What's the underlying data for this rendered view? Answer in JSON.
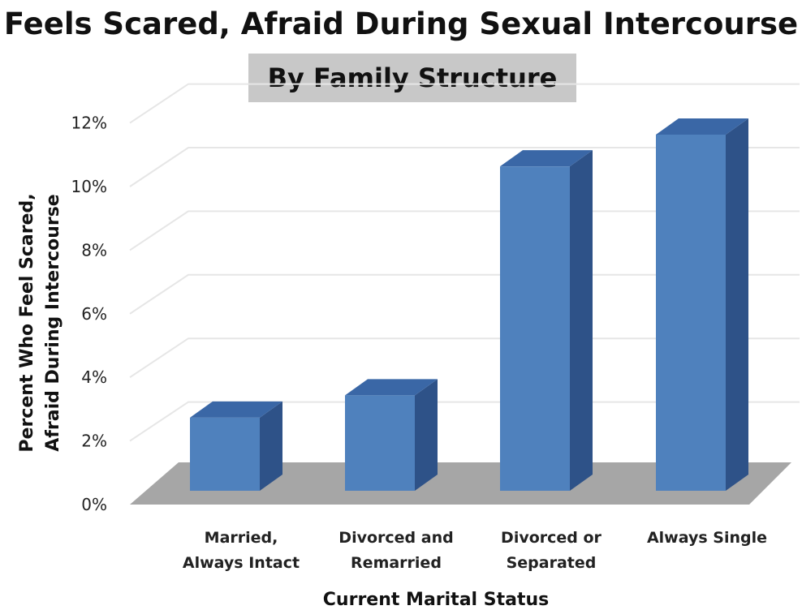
{
  "chart_data": {
    "type": "bar",
    "title": "Feels Scared, Afraid During Sexual Intercourse",
    "subtitle": "By Family Structure",
    "categories": [
      [
        "Married,",
        "Always Intact"
      ],
      [
        "Divorced and",
        "Remarried"
      ],
      [
        "Divorced or",
        "Separated"
      ],
      [
        "Always Single"
      ]
    ],
    "values": [
      2.3,
      3.0,
      10.2,
      11.2
    ],
    "xlabel": "Current Marital Status",
    "ylabel": [
      "Percent Who Feel Scared,",
      "Afraid During Intercourse"
    ],
    "ylim": [
      0,
      12
    ],
    "yticks": [
      "0%",
      "2%",
      "4%",
      "6%",
      "8%",
      "10%",
      "12%"
    ],
    "grid": true,
    "style": "3d-column",
    "colors": {
      "bar_front": "#4f81bd",
      "bar_side": "#2e5288",
      "bar_top": "#3a67a6",
      "floor": "#a6a6a6",
      "gridline": "#e6e6e6",
      "subtitle_bg": "#c8c8c8"
    }
  }
}
